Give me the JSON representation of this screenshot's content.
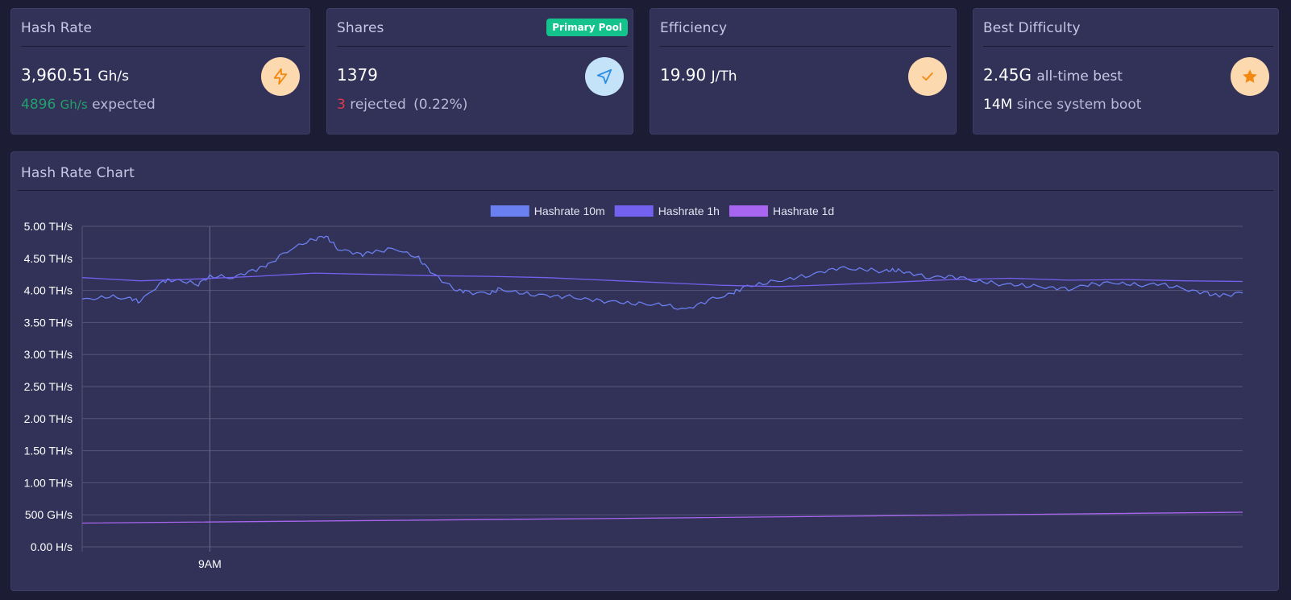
{
  "cards": {
    "hashrate": {
      "title": "Hash Rate",
      "value": "3,960.51",
      "unit": "Gh/s",
      "expected_value": "4896",
      "expected_unit": "Gh/s",
      "expected_label": "expected",
      "icon": "lightning-icon"
    },
    "shares": {
      "title": "Shares",
      "badge": "Primary Pool",
      "value": "1379",
      "rejected_count": "3",
      "rejected_label": "rejected",
      "rejected_percent": "(0.22%)",
      "icon": "send-icon"
    },
    "efficiency": {
      "title": "Efficiency",
      "value": "19.90",
      "unit": "J/Th",
      "icon": "check-icon"
    },
    "best_difficulty": {
      "title": "Best Difficulty",
      "value": "2.45G",
      "value_suffix": "all-time best",
      "boot_value": "14M",
      "boot_label": "since system boot",
      "icon": "star-icon"
    }
  },
  "chart": {
    "title": "Hash Rate Chart"
  },
  "colors": {
    "series_10m": "#6a7ff0",
    "series_1h": "#7561f0",
    "series_1d": "#a866f0",
    "icon_orange": "#f28a12",
    "icon_blue": "#2d8fe2",
    "badge": "#14c28c"
  },
  "chart_data": {
    "type": "line",
    "x_ticks": [
      "9AM"
    ],
    "y_ticks": [
      "0.00 H/s",
      "500 GH/s",
      "1.00 TH/s",
      "1.50 TH/s",
      "2.00 TH/s",
      "2.50 TH/s",
      "3.00 TH/s",
      "3.50 TH/s",
      "4.00 TH/s",
      "4.50 TH/s",
      "5.00 TH/s"
    ],
    "ylim": [
      0,
      5000
    ],
    "x_range": [
      0,
      100
    ],
    "x_tick_positions": [
      11
    ],
    "grid": true,
    "legend_position": "top-center",
    "series": [
      {
        "name": "Hashrate 10m",
        "color_key": "series_10m",
        "x": [
          0,
          2,
          4,
          5,
          7,
          8,
          10,
          11,
          13,
          15,
          16,
          18,
          20,
          21,
          22,
          24,
          25,
          27,
          29,
          30,
          32,
          33,
          35,
          36,
          38,
          40,
          42,
          44,
          46,
          48,
          50,
          52,
          54,
          56,
          57,
          59,
          61,
          63,
          65,
          67,
          69,
          70,
          71,
          73,
          75,
          77,
          79,
          81,
          83,
          85,
          87,
          89,
          91,
          93,
          95,
          97,
          98,
          100
        ],
        "values": [
          3850,
          3900,
          3880,
          3830,
          4150,
          4160,
          4100,
          4220,
          4200,
          4330,
          4400,
          4650,
          4800,
          4850,
          4650,
          4560,
          4600,
          4650,
          4500,
          4300,
          4020,
          3980,
          3950,
          4020,
          3950,
          3920,
          3900,
          3850,
          3820,
          3790,
          3780,
          3700,
          3850,
          3950,
          4050,
          4120,
          4180,
          4250,
          4350,
          4330,
          4300,
          4320,
          4280,
          4200,
          4220,
          4150,
          4100,
          4080,
          4050,
          4020,
          4100,
          4120,
          4080,
          4100,
          4020,
          3950,
          3920,
          3960
        ]
      },
      {
        "name": "Hashrate 1h",
        "color_key": "series_1h",
        "x": [
          0,
          5,
          10,
          15,
          20,
          25,
          30,
          35,
          40,
          45,
          50,
          55,
          60,
          65,
          70,
          75,
          80,
          85,
          90,
          95,
          100
        ],
        "values": [
          4200,
          4150,
          4180,
          4220,
          4270,
          4250,
          4230,
          4220,
          4200,
          4160,
          4120,
          4080,
          4060,
          4090,
          4130,
          4170,
          4190,
          4160,
          4170,
          4150,
          4140
        ]
      },
      {
        "name": "Hashrate 1d",
        "color_key": "series_1d",
        "x": [
          0,
          50,
          100
        ],
        "values": [
          370,
          450,
          540
        ]
      }
    ]
  }
}
